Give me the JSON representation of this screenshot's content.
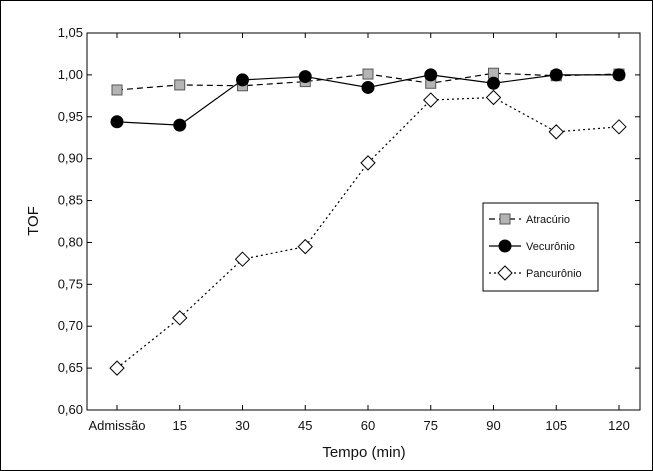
{
  "chart_data": {
    "type": "line",
    "title": "",
    "xlabel": "Tempo (min)",
    "ylabel": "TOF",
    "categories": [
      "Admissão",
      "15",
      "30",
      "45",
      "60",
      "75",
      "90",
      "105",
      "120"
    ],
    "ylim": [
      0.6,
      1.05
    ],
    "yticks": [
      "0,60",
      "0,65",
      "0,70",
      "0,75",
      "0,80",
      "0,85",
      "0,90",
      "0,95",
      "1,00",
      "1,05"
    ],
    "grid": false,
    "legend_position": "right",
    "series": [
      {
        "name": "Atracúrio",
        "marker": "square",
        "line_style": "dashed",
        "color": "#b4b4b4",
        "values": [
          0.982,
          0.988,
          0.987,
          0.992,
          1.001,
          0.99,
          1.002,
          0.999,
          1.001
        ]
      },
      {
        "name": "Vecurônio",
        "marker": "circle",
        "line_style": "solid",
        "color": "#000000",
        "values": [
          0.944,
          0.94,
          0.994,
          0.998,
          0.985,
          1.0,
          0.99,
          1.0,
          1.0
        ]
      },
      {
        "name": "Pancurônio",
        "marker": "diamond",
        "line_style": "dotted",
        "color": "#ffffff",
        "values": [
          0.65,
          0.71,
          0.78,
          0.795,
          0.895,
          0.97,
          0.973,
          0.932,
          0.938
        ]
      }
    ]
  }
}
